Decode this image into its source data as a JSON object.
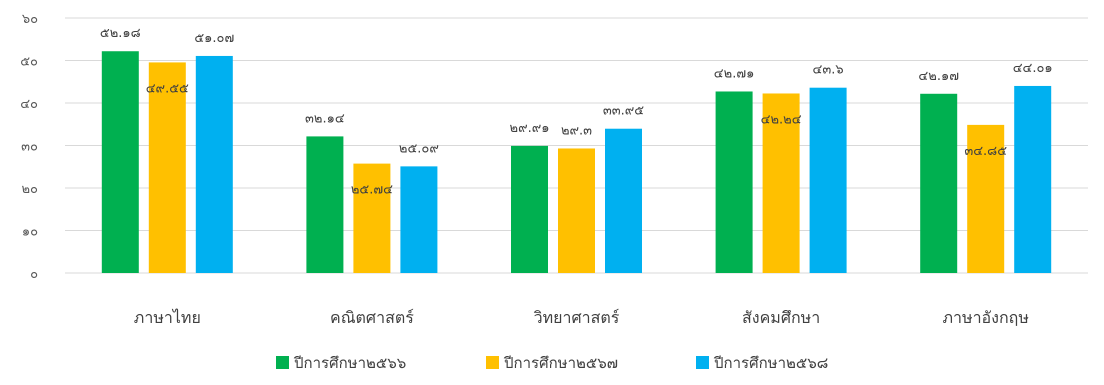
{
  "chart_data": {
    "type": "bar",
    "title": "",
    "xlabel": "",
    "ylabel": "",
    "ylim": [
      0,
      60
    ],
    "yticks": [
      0,
      10,
      20,
      30,
      40,
      50,
      60
    ],
    "ytick_labels": [
      "๐",
      "๑๐",
      "๒๐",
      "๓๐",
      "๔๐",
      "๕๐",
      "๖๐"
    ],
    "grid": true,
    "legend_position": "bottom",
    "categories": [
      "ภาษาไทย",
      "คณิตศาสตร์",
      "วิทยาศาสตร์",
      "สังคมศึกษา",
      "ภาษาอังกฤษ"
    ],
    "series": [
      {
        "name": "ปีการศึกษา๒๕๖๖",
        "color": "#00B050",
        "values": [
          52.18,
          32.14,
          29.91,
          42.71,
          42.17
        ],
        "labels": [
          "๕๒.๑๘",
          "๓๒.๑๔",
          "๒๙.๙๑",
          "๔๒.๗๑",
          "๔๒.๑๗"
        ]
      },
      {
        "name": "ปีการศึกษา๒๕๖๗",
        "color": "#FFC000",
        "values": [
          49.55,
          25.74,
          29.3,
          42.24,
          34.85
        ],
        "labels": [
          "๔๙.๕๕",
          "๒๕.๗๔",
          "๒๙.๓",
          "๔๒.๒๔",
          "๓๔.๘๕"
        ]
      },
      {
        "name": "ปีการศึกษา๒๕๖๘",
        "color": "#00B0F0",
        "values": [
          51.07,
          25.09,
          33.95,
          43.6,
          44.01
        ],
        "labels": [
          "๕๑.๐๗",
          "๒๕.๐๙",
          "๓๓.๙๕",
          "๔๓.๖",
          "๔๔.๐๑"
        ]
      }
    ]
  }
}
